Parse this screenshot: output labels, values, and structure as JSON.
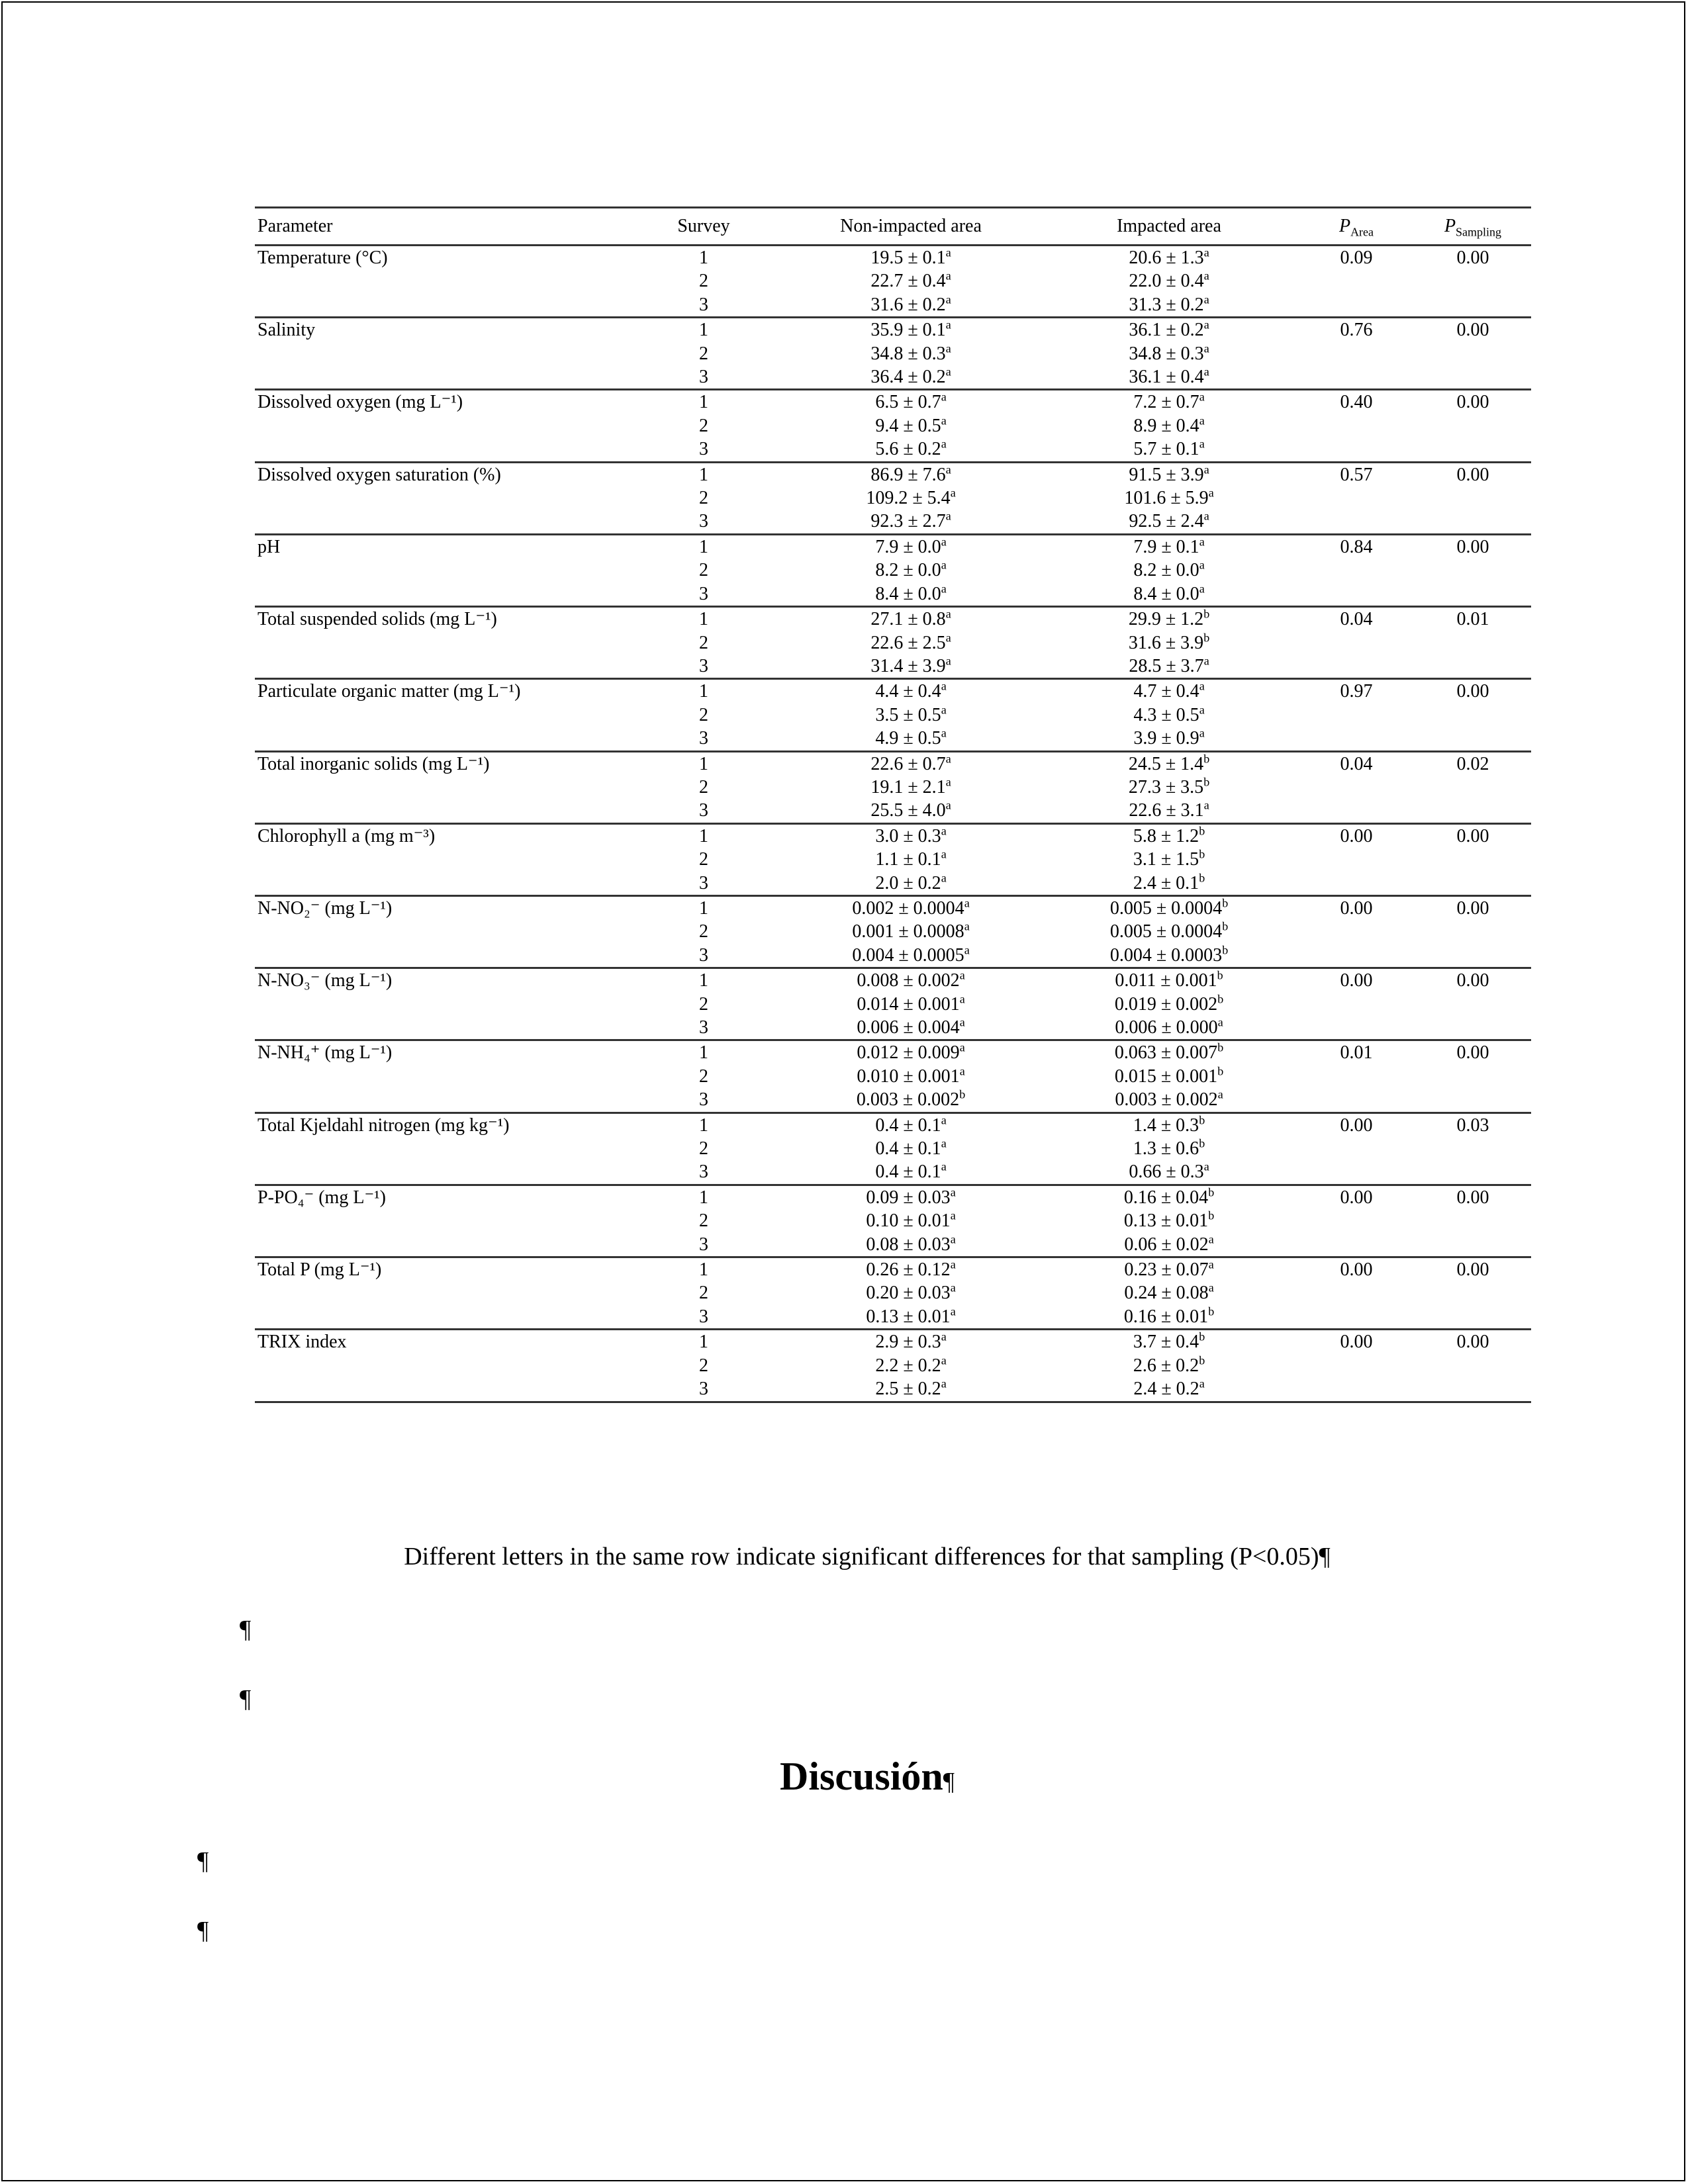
{
  "table": {
    "headers": {
      "parameter": "Parameter",
      "survey": "Survey",
      "non_impacted": "Non-impacted area",
      "impacted": "Impacted area",
      "p_area": "P",
      "p_area_sub": "Area",
      "p_sampling": "P",
      "p_sampling_sub": "Sampling"
    },
    "groups": [
      {
        "parameter": "Temperature (°C)",
        "p_area": "0.09",
        "p_sampling": "0.00",
        "rows": [
          {
            "survey": "1",
            "non": "19.5 ± 0.1",
            "non_sup": "a",
            "imp": "20.6 ± 1.3",
            "imp_sup": "a"
          },
          {
            "survey": "2",
            "non": "22.7 ± 0.4",
            "non_sup": "a",
            "imp": "22.0 ± 0.4",
            "imp_sup": "a"
          },
          {
            "survey": "3",
            "non": "31.6 ± 0.2",
            "non_sup": "a",
            "imp": "31.3 ± 0.2",
            "imp_sup": "a"
          }
        ]
      },
      {
        "parameter": "Salinity",
        "p_area": "0.76",
        "p_sampling": "0.00",
        "rows": [
          {
            "survey": "1",
            "non": "35.9 ± 0.1",
            "non_sup": "a",
            "imp": "36.1 ± 0.2",
            "imp_sup": "a"
          },
          {
            "survey": "2",
            "non": "34.8 ± 0.3",
            "non_sup": "a",
            "imp": "34.8 ± 0.3",
            "imp_sup": "a"
          },
          {
            "survey": "3",
            "non": "36.4 ± 0.2",
            "non_sup": "a",
            "imp": "36.1 ± 0.4",
            "imp_sup": "a"
          }
        ]
      },
      {
        "parameter": "Dissolved oxygen (mg L⁻¹)",
        "p_area": "0.40",
        "p_sampling": "0.00",
        "rows": [
          {
            "survey": "1",
            "non": "6.5 ± 0.7",
            "non_sup": "a",
            "imp": "7.2 ± 0.7",
            "imp_sup": "a"
          },
          {
            "survey": "2",
            "non": "9.4 ± 0.5",
            "non_sup": "a",
            "imp": "8.9 ± 0.4",
            "imp_sup": "a"
          },
          {
            "survey": "3",
            "non": "5.6 ± 0.2",
            "non_sup": "a",
            "imp": "5.7 ± 0.1",
            "imp_sup": "a"
          }
        ]
      },
      {
        "parameter": "Dissolved oxygen saturation (%)",
        "p_area": "0.57",
        "p_sampling": "0.00",
        "rows": [
          {
            "survey": "1",
            "non": "86.9 ± 7.6",
            "non_sup": "a",
            "imp": "91.5 ± 3.9",
            "imp_sup": "a"
          },
          {
            "survey": "2",
            "non": "109.2 ± 5.4",
            "non_sup": "a",
            "imp": "101.6 ± 5.9",
            "imp_sup": "a"
          },
          {
            "survey": "3",
            "non": "92.3 ± 2.7",
            "non_sup": "a",
            "imp": "92.5 ± 2.4",
            "imp_sup": "a"
          }
        ]
      },
      {
        "parameter": "pH",
        "p_area": "0.84",
        "p_sampling": "0.00",
        "rows": [
          {
            "survey": "1",
            "non": "7.9 ± 0.0",
            "non_sup": "a",
            "imp": "7.9 ± 0.1",
            "imp_sup": "a"
          },
          {
            "survey": "2",
            "non": "8.2 ± 0.0",
            "non_sup": "a",
            "imp": "8.2 ± 0.0",
            "imp_sup": "a"
          },
          {
            "survey": "3",
            "non": "8.4 ± 0.0",
            "non_sup": "a",
            "imp": "8.4 ± 0.0",
            "imp_sup": "a"
          }
        ]
      },
      {
        "parameter": "Total suspended solids (mg L⁻¹)",
        "p_area": "0.04",
        "p_sampling": "0.01",
        "rows": [
          {
            "survey": "1",
            "non": "27.1 ± 0.8",
            "non_sup": "a",
            "imp": "29.9 ± 1.2",
            "imp_sup": "b"
          },
          {
            "survey": "2",
            "non": "22.6 ± 2.5",
            "non_sup": "a",
            "imp": "31.6 ± 3.9",
            "imp_sup": "b"
          },
          {
            "survey": "3",
            "non": "31.4 ± 3.9",
            "non_sup": "a",
            "imp": "28.5 ± 3.7",
            "imp_sup": "a"
          }
        ]
      },
      {
        "parameter": "Particulate organic matter (mg L⁻¹)",
        "p_area": "0.97",
        "p_sampling": "0.00",
        "rows": [
          {
            "survey": "1",
            "non": "4.4 ± 0.4",
            "non_sup": "a",
            "imp": "4.7 ± 0.4",
            "imp_sup": "a"
          },
          {
            "survey": "2",
            "non": "3.5 ± 0.5",
            "non_sup": "a",
            "imp": "4.3 ± 0.5",
            "imp_sup": "a"
          },
          {
            "survey": "3",
            "non": "4.9 ± 0.5",
            "non_sup": "a",
            "imp": "3.9 ± 0.9",
            "imp_sup": "a"
          }
        ]
      },
      {
        "parameter": "Total inorganic solids (mg L⁻¹)",
        "p_area": "0.04",
        "p_sampling": "0.02",
        "rows": [
          {
            "survey": "1",
            "non": "22.6 ± 0.7",
            "non_sup": "a",
            "imp": "24.5 ± 1.4",
            "imp_sup": "b"
          },
          {
            "survey": "2",
            "non": "19.1 ± 2.1",
            "non_sup": "a",
            "imp": "27.3 ± 3.5",
            "imp_sup": "b"
          },
          {
            "survey": "3",
            "non": "25.5 ± 4.0",
            "non_sup": "a",
            "imp": "22.6 ± 3.1",
            "imp_sup": "a"
          }
        ]
      },
      {
        "parameter": "Chlorophyll a (mg m⁻³)",
        "p_area": "0.00",
        "p_sampling": "0.00",
        "rows": [
          {
            "survey": "1",
            "non": "3.0 ± 0.3",
            "non_sup": "a",
            "imp": "5.8 ± 1.2",
            "imp_sup": "b"
          },
          {
            "survey": "2",
            "non": "1.1 ± 0.1",
            "non_sup": "a",
            "imp": "3.1 ± 1.5",
            "imp_sup": "b"
          },
          {
            "survey": "3",
            "non": "2.0 ± 0.2",
            "non_sup": "a",
            "imp": "2.4 ± 0.1",
            "imp_sup": "b"
          }
        ]
      },
      {
        "parameter": "N-NO₂⁻ (mg L⁻¹)",
        "p_area": "0.00",
        "p_sampling": "0.00",
        "rows": [
          {
            "survey": "1",
            "non": "0.002 ± 0.0004",
            "non_sup": "a",
            "imp": "0.005 ± 0.0004",
            "imp_sup": "b"
          },
          {
            "survey": "2",
            "non": "0.001 ± 0.0008",
            "non_sup": "a",
            "imp": "0.005 ± 0.0004",
            "imp_sup": "b"
          },
          {
            "survey": "3",
            "non": "0.004 ± 0.0005",
            "non_sup": "a",
            "imp": "0.004 ± 0.0003",
            "imp_sup": "b"
          }
        ]
      },
      {
        "parameter": "N-NO₃⁻ (mg L⁻¹)",
        "p_area": "0.00",
        "p_sampling": "0.00",
        "rows": [
          {
            "survey": "1",
            "non": "0.008 ± 0.002",
            "non_sup": "a",
            "imp": "0.011 ± 0.001",
            "imp_sup": "b"
          },
          {
            "survey": "2",
            "non": "0.014 ± 0.001",
            "non_sup": "a",
            "imp": "0.019 ± 0.002",
            "imp_sup": "b"
          },
          {
            "survey": "3",
            "non": "0.006 ± 0.004",
            "non_sup": "a",
            "imp": "0.006 ± 0.000",
            "imp_sup": "a"
          }
        ]
      },
      {
        "parameter": "N-NH₄⁺ (mg L⁻¹)",
        "p_area": "0.01",
        "p_sampling": "0.00",
        "rows": [
          {
            "survey": "1",
            "non": "0.012 ± 0.009",
            "non_sup": "a",
            "imp": "0.063 ± 0.007",
            "imp_sup": "b"
          },
          {
            "survey": "2",
            "non": "0.010 ± 0.001",
            "non_sup": "a",
            "imp": "0.015 ± 0.001",
            "imp_sup": "b"
          },
          {
            "survey": "3",
            "non": "0.003 ± 0.002",
            "non_sup": "b",
            "imp": "0.003 ± 0.002",
            "imp_sup": "a"
          }
        ]
      },
      {
        "parameter": "Total Kjeldahl nitrogen (mg kg⁻¹)",
        "p_area": "0.00",
        "p_sampling": "0.03",
        "rows": [
          {
            "survey": "1",
            "non": "0.4 ± 0.1",
            "non_sup": "a",
            "imp": "1.4 ± 0.3",
            "imp_sup": "b"
          },
          {
            "survey": "2",
            "non": "0.4 ± 0.1",
            "non_sup": "a",
            "imp": "1.3 ± 0.6",
            "imp_sup": "b"
          },
          {
            "survey": "3",
            "non": "0.4 ± 0.1",
            "non_sup": "a",
            "imp": "0.66 ± 0.3",
            "imp_sup": "a"
          }
        ]
      },
      {
        "parameter": "P-PO₄⁻ (mg L⁻¹)",
        "p_area": "0.00",
        "p_sampling": "0.00",
        "rows": [
          {
            "survey": "1",
            "non": "0.09 ± 0.03",
            "non_sup": "a",
            "imp": "0.16 ± 0.04",
            "imp_sup": "b"
          },
          {
            "survey": "2",
            "non": "0.10 ± 0.01",
            "non_sup": "a",
            "imp": "0.13 ± 0.01",
            "imp_sup": "b"
          },
          {
            "survey": "3",
            "non": "0.08 ± 0.03",
            "non_sup": "a",
            "imp": "0.06 ± 0.02",
            "imp_sup": "a"
          }
        ]
      },
      {
        "parameter": "Total P (mg L⁻¹)",
        "p_area": "0.00",
        "p_sampling": "0.00",
        "rows": [
          {
            "survey": "1",
            "non": "0.26 ± 0.12",
            "non_sup": "a",
            "imp": "0.23 ± 0.07",
            "imp_sup": "a"
          },
          {
            "survey": "2",
            "non": "0.20 ± 0.03",
            "non_sup": "a",
            "imp": "0.24 ± 0.08",
            "imp_sup": "a"
          },
          {
            "survey": "3",
            "non": "0.13 ± 0.01",
            "non_sup": "a",
            "imp": "0.16 ± 0.01",
            "imp_sup": "b"
          }
        ]
      },
      {
        "parameter": "TRIX index",
        "p_area": "0.00",
        "p_sampling": "0.00",
        "rows": [
          {
            "survey": "1",
            "non": "2.9 ± 0.3",
            "non_sup": "a",
            "imp": "3.7 ± 0.4",
            "imp_sup": "b"
          },
          {
            "survey": "2",
            "non": "2.2 ± 0.2",
            "non_sup": "a",
            "imp": "2.6 ± 0.2",
            "imp_sup": "b"
          },
          {
            "survey": "3",
            "non": "2.5 ± 0.2",
            "non_sup": "a",
            "imp": "2.4 ± 0.2",
            "imp_sup": "a"
          }
        ]
      }
    ]
  },
  "caption": "Different letters in the same row indicate significant differences for that sampling (P<0.05)¶",
  "pilcrow": "¶",
  "heading": "Discusión",
  "heading_mark": "¶"
}
